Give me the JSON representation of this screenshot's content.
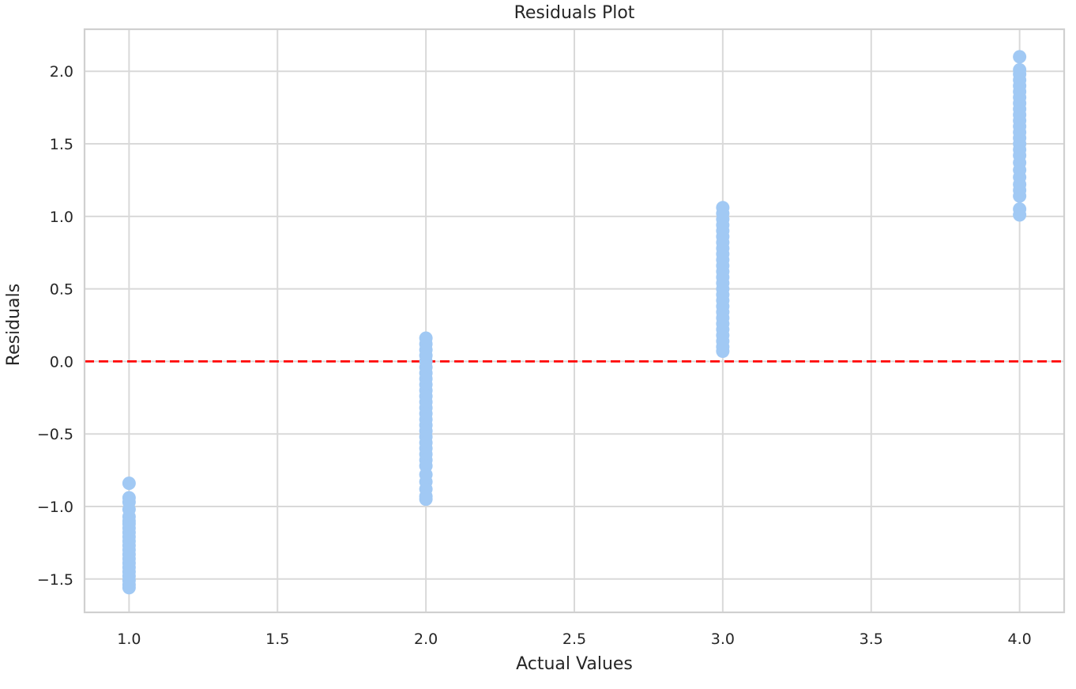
{
  "chart_data": {
    "type": "scatter",
    "title": "Residuals Plot",
    "xlabel": "Actual Values",
    "ylabel": "Residuals",
    "xlim": [
      0.85,
      4.15
    ],
    "ylim": [
      -1.73,
      2.29
    ],
    "x_ticks": [
      1.0,
      1.5,
      2.0,
      2.5,
      3.0,
      3.5,
      4.0
    ],
    "x_tick_labels": [
      "1.0",
      "1.5",
      "2.0",
      "2.5",
      "3.0",
      "3.5",
      "4.0"
    ],
    "y_ticks": [
      -1.5,
      -1.0,
      -0.5,
      0.0,
      0.5,
      1.0,
      1.5,
      2.0
    ],
    "y_tick_labels": [
      "−1.5",
      "−1.0",
      "−0.5",
      "0.0",
      "0.5",
      "1.0",
      "1.5",
      "2.0"
    ],
    "grid": true,
    "reference_line": {
      "y": 0.0,
      "style": "dashed",
      "color": "#ff0000"
    },
    "point_color": "#a1c9f4",
    "series": [
      {
        "points": [
          [
            1.0,
            -0.84
          ],
          [
            1.0,
            -0.94
          ],
          [
            1.0,
            -0.97
          ],
          [
            1.0,
            -1.02
          ],
          [
            1.0,
            -1.07
          ],
          [
            1.0,
            -1.1
          ],
          [
            1.0,
            -1.12
          ],
          [
            1.0,
            -1.15
          ],
          [
            1.0,
            -1.18
          ],
          [
            1.0,
            -1.21
          ],
          [
            1.0,
            -1.24
          ],
          [
            1.0,
            -1.27
          ],
          [
            1.0,
            -1.3
          ],
          [
            1.0,
            -1.33
          ],
          [
            1.0,
            -1.36
          ],
          [
            1.0,
            -1.39
          ],
          [
            1.0,
            -1.42
          ],
          [
            1.0,
            -1.45
          ],
          [
            1.0,
            -1.48
          ],
          [
            1.0,
            -1.51
          ],
          [
            1.0,
            -1.54
          ],
          [
            1.0,
            -1.56
          ],
          [
            2.0,
            0.16
          ],
          [
            2.0,
            0.12
          ],
          [
            2.0,
            0.08
          ],
          [
            2.0,
            0.04
          ],
          [
            2.0,
            0.0
          ],
          [
            2.0,
            -0.04
          ],
          [
            2.0,
            -0.08
          ],
          [
            2.0,
            -0.12
          ],
          [
            2.0,
            -0.16
          ],
          [
            2.0,
            -0.2
          ],
          [
            2.0,
            -0.24
          ],
          [
            2.0,
            -0.28
          ],
          [
            2.0,
            -0.32
          ],
          [
            2.0,
            -0.36
          ],
          [
            2.0,
            -0.4
          ],
          [
            2.0,
            -0.44
          ],
          [
            2.0,
            -0.48
          ],
          [
            2.0,
            -0.52
          ],
          [
            2.0,
            -0.56
          ],
          [
            2.0,
            -0.6
          ],
          [
            2.0,
            -0.64
          ],
          [
            2.0,
            -0.68
          ],
          [
            2.0,
            -0.72
          ],
          [
            2.0,
            -0.78
          ],
          [
            2.0,
            -0.83
          ],
          [
            2.0,
            -0.88
          ],
          [
            2.0,
            -0.93
          ],
          [
            2.0,
            -0.95
          ],
          [
            3.0,
            1.06
          ],
          [
            3.0,
            1.02
          ],
          [
            3.0,
            0.98
          ],
          [
            3.0,
            0.94
          ],
          [
            3.0,
            0.9
          ],
          [
            3.0,
            0.86
          ],
          [
            3.0,
            0.82
          ],
          [
            3.0,
            0.78
          ],
          [
            3.0,
            0.74
          ],
          [
            3.0,
            0.7
          ],
          [
            3.0,
            0.66
          ],
          [
            3.0,
            0.62
          ],
          [
            3.0,
            0.58
          ],
          [
            3.0,
            0.54
          ],
          [
            3.0,
            0.5
          ],
          [
            3.0,
            0.46
          ],
          [
            3.0,
            0.42
          ],
          [
            3.0,
            0.38
          ],
          [
            3.0,
            0.34
          ],
          [
            3.0,
            0.3
          ],
          [
            3.0,
            0.26
          ],
          [
            3.0,
            0.22
          ],
          [
            3.0,
            0.18
          ],
          [
            3.0,
            0.14
          ],
          [
            3.0,
            0.1
          ],
          [
            3.0,
            0.07
          ],
          [
            4.0,
            2.1
          ],
          [
            4.0,
            2.01
          ],
          [
            4.0,
            1.98
          ],
          [
            4.0,
            1.94
          ],
          [
            4.0,
            1.9
          ],
          [
            4.0,
            1.86
          ],
          [
            4.0,
            1.82
          ],
          [
            4.0,
            1.78
          ],
          [
            4.0,
            1.74
          ],
          [
            4.0,
            1.7
          ],
          [
            4.0,
            1.66
          ],
          [
            4.0,
            1.62
          ],
          [
            4.0,
            1.58
          ],
          [
            4.0,
            1.54
          ],
          [
            4.0,
            1.5
          ],
          [
            4.0,
            1.46
          ],
          [
            4.0,
            1.42
          ],
          [
            4.0,
            1.37
          ],
          [
            4.0,
            1.32
          ],
          [
            4.0,
            1.27
          ],
          [
            4.0,
            1.22
          ],
          [
            4.0,
            1.18
          ],
          [
            4.0,
            1.14
          ],
          [
            4.0,
            1.05
          ],
          [
            4.0,
            1.01
          ]
        ]
      }
    ]
  }
}
